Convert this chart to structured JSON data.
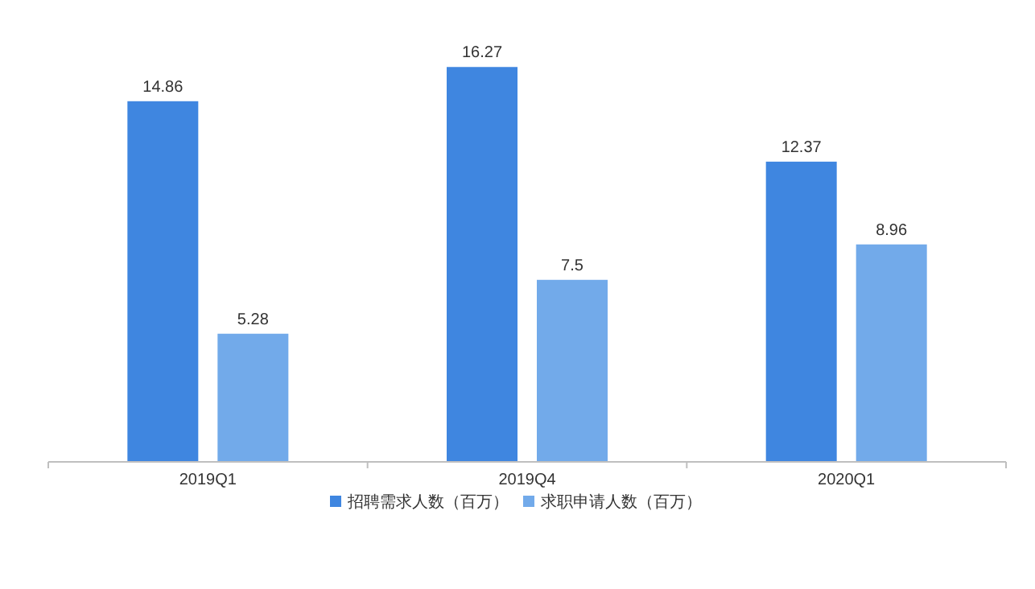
{
  "chart_data": {
    "type": "bar",
    "categories": [
      "2019Q1",
      "2019Q4",
      "2020Q1"
    ],
    "series": [
      {
        "name": "招聘需求人数（百万）",
        "color": "#3f86e0",
        "values": [
          14.86,
          16.27,
          12.37
        ]
      },
      {
        "name": "求职申请人数（百万）",
        "color": "#72aaea",
        "values": [
          5.28,
          7.5,
          8.96
        ]
      }
    ],
    "data_labels": true,
    "legend": "bottom"
  }
}
